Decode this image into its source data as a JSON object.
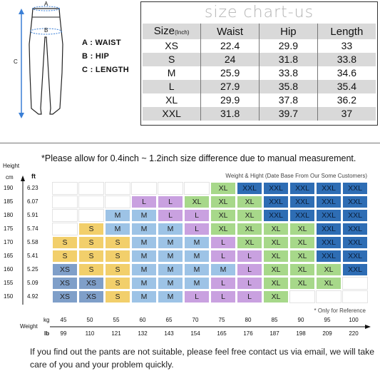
{
  "diagram": {
    "marker_a": "A",
    "marker_b": "B",
    "marker_c": "C",
    "labels": [
      "A : WAIST",
      "B : HIP",
      "C : LENGTH"
    ],
    "arrow_color": "#3a7fd6"
  },
  "size_chart": {
    "title": "size chart-us",
    "header": {
      "size": "Size",
      "unit": "(Inch)",
      "waist": "Waist",
      "hip": "Hip",
      "length": "Length"
    },
    "rows": [
      {
        "size": "XS",
        "waist": "22.4",
        "hip": "29.9",
        "length": "33"
      },
      {
        "size": "S",
        "waist": "24",
        "hip": "31.8",
        "length": "33.8"
      },
      {
        "size": "M",
        "waist": "25.9",
        "hip": "33.8",
        "length": "34.6"
      },
      {
        "size": "L",
        "waist": "27.9",
        "hip": "35.8",
        "length": "35.4"
      },
      {
        "size": "XL",
        "waist": "29.9",
        "hip": "37.8",
        "length": "36.2"
      },
      {
        "size": "XXL",
        "waist": "31.8",
        "hip": "39.7",
        "length": "37"
      }
    ]
  },
  "weight_height_chart": {
    "note": "*Please allow for 0.4inch ~ 1.2inch size difference due to manual measurement.",
    "y_title": "Height",
    "y_unit_cm": "cm",
    "y_unit_ft": "ft",
    "x_title": "Weight",
    "x_unit_kg": "kg",
    "x_unit_lb": "lb",
    "legend_text": "Weight & Hight (Date Base From Our Some Customers)",
    "ref_note": "* Only for Reference",
    "heights_cm": [
      "190",
      "185",
      "180",
      "175",
      "170",
      "165",
      "160",
      "155",
      "150"
    ],
    "heights_ft": [
      "6.23",
      "6.07",
      "5.91",
      "5.74",
      "5.58",
      "5.41",
      "5.25",
      "5.09",
      "4.92"
    ],
    "weights_kg": [
      "45",
      "50",
      "55",
      "60",
      "65",
      "70",
      "75",
      "80",
      "85",
      "90",
      "95",
      "100"
    ],
    "weights_lb": [
      "99",
      "110",
      "121",
      "132",
      "143",
      "154",
      "165",
      "176",
      "187",
      "198",
      "209",
      "220"
    ],
    "colors": {
      "XS": "#7f9fc9",
      "S": "#f2cf6b",
      "M": "#9dc3e6",
      "L": "#c9a1e0",
      "XL": "#a7d88a",
      "XXL": "#2e6db4"
    },
    "grid": [
      [
        "",
        "",
        "",
        "",
        "",
        "",
        "XL",
        "XXL",
        "XXL",
        "XXL",
        "XXL",
        "XXL"
      ],
      [
        "",
        "",
        "",
        "L",
        "L",
        "XL",
        "XL",
        "XL",
        "XXL",
        "XXL",
        "XXL",
        "XXL"
      ],
      [
        "",
        "",
        "M",
        "M",
        "L",
        "L",
        "XL",
        "XL",
        "XXL",
        "XXL",
        "XXL",
        "XXL"
      ],
      [
        "",
        "S",
        "M",
        "M",
        "M",
        "L",
        "XL",
        "XL",
        "XL",
        "XL",
        "XXL",
        "XXL"
      ],
      [
        "S",
        "S",
        "S",
        "M",
        "M",
        "M",
        "L",
        "XL",
        "XL",
        "XL",
        "XXL",
        "XXL"
      ],
      [
        "S",
        "S",
        "S",
        "M",
        "M",
        "M",
        "L",
        "L",
        "XL",
        "XL",
        "XXL",
        "XXL"
      ],
      [
        "XS",
        "S",
        "S",
        "M",
        "M",
        "M",
        "M",
        "L",
        "XL",
        "XL",
        "XL",
        "XXL"
      ],
      [
        "XS",
        "XS",
        "S",
        "M",
        "M",
        "M",
        "L",
        "L",
        "XL",
        "XL",
        "XL",
        ""
      ],
      [
        "XS",
        "XS",
        "S",
        "M",
        "M",
        "L",
        "L",
        "L",
        "XL",
        "",
        "",
        ""
      ]
    ]
  },
  "footer": "If you find out the pants are not suitable, please feel free contact us via email, we will take care of you and your problem quickly."
}
